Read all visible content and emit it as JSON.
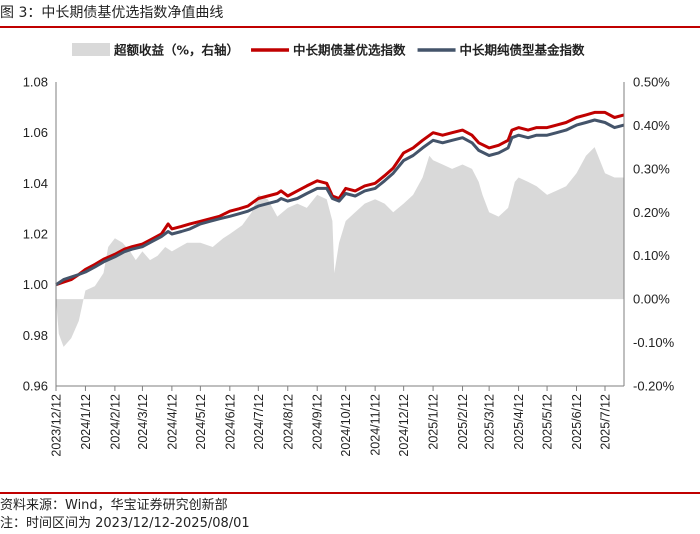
{
  "figure": {
    "title": "图 3：中长期债基优选指数净值曲线",
    "source": "资料来源：Wind，华宝证券研究创新部",
    "note": "注：时间区间为 2023/12/12-2025/08/01"
  },
  "colors": {
    "accent_rule": "#c00000",
    "series_red": "#c00000",
    "series_blue": "#44546a",
    "area_grey": "#d9d9d9"
  },
  "chart_data": {
    "type": "line",
    "title": "",
    "legend_placement": "top",
    "grid": false,
    "x_tick_labels": [
      "2023/12/12",
      "2024/1/12",
      "2024/2/12",
      "2024/3/12",
      "2024/4/12",
      "2024/5/12",
      "2024/6/12",
      "2024/7/12",
      "2024/8/12",
      "2024/9/12",
      "2024/10/12",
      "2024/11/12",
      "2024/12/12",
      "2025/1/12",
      "2025/2/12",
      "2025/3/12",
      "2025/4/12",
      "2025/5/12",
      "2025/6/12",
      "2025/7/12"
    ],
    "y_left": {
      "ylim": [
        0.96,
        1.08
      ],
      "ticks": [
        "0.96",
        "0.98",
        "1.00",
        "1.02",
        "1.04",
        "1.06",
        "1.08"
      ]
    },
    "y_right": {
      "ylim": [
        -0.002,
        0.005
      ],
      "ticks": [
        "-0.20%",
        "-0.10%",
        "0.00%",
        "0.10%",
        "0.20%",
        "0.30%",
        "0.40%",
        "0.50%"
      ]
    },
    "series": [
      {
        "name": "超额收益（%，右轴）",
        "kind": "area",
        "axis": "right",
        "points": [
          [
            "2023/12/12",
            0.0
          ],
          [
            "2023/12/15",
            -0.0008
          ],
          [
            "2023/12/20",
            -0.0011
          ],
          [
            "2023/12/28",
            -0.0009
          ],
          [
            "2024/1/5",
            -0.0005
          ],
          [
            "2024/1/12",
            0.0002
          ],
          [
            "2024/1/22",
            0.0003
          ],
          [
            "2024/1/31",
            0.0006
          ],
          [
            "2024/2/5",
            0.0012
          ],
          [
            "2024/2/12",
            0.0014
          ],
          [
            "2024/2/20",
            0.0013
          ],
          [
            "2024/2/28",
            0.0011
          ],
          [
            "2024/3/5",
            0.0009
          ],
          [
            "2024/3/12",
            0.0011
          ],
          [
            "2024/3/20",
            0.0009
          ],
          [
            "2024/3/28",
            0.001
          ],
          [
            "2024/4/5",
            0.0012
          ],
          [
            "2024/4/12",
            0.0011
          ],
          [
            "2024/4/20",
            0.0012
          ],
          [
            "2024/4/28",
            0.0013
          ],
          [
            "2024/5/12",
            0.0013
          ],
          [
            "2024/5/25",
            0.0012
          ],
          [
            "2024/6/5",
            0.0014
          ],
          [
            "2024/6/12",
            0.0015
          ],
          [
            "2024/6/25",
            0.0017
          ],
          [
            "2024/7/5",
            0.002
          ],
          [
            "2024/7/12",
            0.0024
          ],
          [
            "2024/7/22",
            0.0023
          ],
          [
            "2024/8/1",
            0.0019
          ],
          [
            "2024/8/12",
            0.0021
          ],
          [
            "2024/8/22",
            0.0022
          ],
          [
            "2024/9/1",
            0.0021
          ],
          [
            "2024/9/12",
            0.0024
          ],
          [
            "2024/9/22",
            0.0023
          ],
          [
            "2024/9/28",
            0.0018
          ],
          [
            "2024/9/30",
            0.0006
          ],
          [
            "2024/10/5",
            0.0013
          ],
          [
            "2024/10/12",
            0.0018
          ],
          [
            "2024/10/22",
            0.002
          ],
          [
            "2024/11/1",
            0.0022
          ],
          [
            "2024/11/12",
            0.0023
          ],
          [
            "2024/11/22",
            0.0022
          ],
          [
            "2024/12/1",
            0.002
          ],
          [
            "2024/12/12",
            0.0022
          ],
          [
            "2024/12/22",
            0.0024
          ],
          [
            "2025/1/1",
            0.0028
          ],
          [
            "2025/1/8",
            0.0033
          ],
          [
            "2025/1/12",
            0.0032
          ],
          [
            "2025/1/22",
            0.0031
          ],
          [
            "2025/2/1",
            0.003
          ],
          [
            "2025/2/12",
            0.0031
          ],
          [
            "2025/2/22",
            0.003
          ],
          [
            "2025/3/1",
            0.0027
          ],
          [
            "2025/3/5",
            0.0024
          ],
          [
            "2025/3/12",
            0.002
          ],
          [
            "2025/3/22",
            0.0019
          ],
          [
            "2025/4/1",
            0.0021
          ],
          [
            "2025/4/8",
            0.0027
          ],
          [
            "2025/4/12",
            0.0028
          ],
          [
            "2025/4/22",
            0.0027
          ],
          [
            "2025/5/1",
            0.0026
          ],
          [
            "2025/5/12",
            0.0024
          ],
          [
            "2025/5/22",
            0.0025
          ],
          [
            "2025/6/1",
            0.0026
          ],
          [
            "2025/6/12",
            0.0029
          ],
          [
            "2025/6/22",
            0.0033
          ],
          [
            "2025/7/1",
            0.0035
          ],
          [
            "2025/7/12",
            0.0029
          ],
          [
            "2025/7/22",
            0.0028
          ],
          [
            "2025/8/1",
            0.0028
          ]
        ]
      },
      {
        "name": "中长期债基优选指数",
        "kind": "line",
        "axis": "left",
        "points": [
          [
            "2023/12/12",
            1.0
          ],
          [
            "2023/12/20",
            1.001
          ],
          [
            "2023/12/28",
            1.002
          ],
          [
            "2024/1/5",
            1.004
          ],
          [
            "2024/1/12",
            1.006
          ],
          [
            "2024/1/22",
            1.008
          ],
          [
            "2024/1/31",
            1.01
          ],
          [
            "2024/2/12",
            1.012
          ],
          [
            "2024/2/22",
            1.014
          ],
          [
            "2024/3/1",
            1.015
          ],
          [
            "2024/3/12",
            1.016
          ],
          [
            "2024/3/22",
            1.018
          ],
          [
            "2024/4/1",
            1.02
          ],
          [
            "2024/4/8",
            1.024
          ],
          [
            "2024/4/12",
            1.022
          ],
          [
            "2024/4/22",
            1.023
          ],
          [
            "2024/5/1",
            1.024
          ],
          [
            "2024/5/12",
            1.025
          ],
          [
            "2024/5/22",
            1.026
          ],
          [
            "2024/6/1",
            1.027
          ],
          [
            "2024/6/12",
            1.029
          ],
          [
            "2024/6/22",
            1.03
          ],
          [
            "2024/7/1",
            1.031
          ],
          [
            "2024/7/12",
            1.034
          ],
          [
            "2024/7/22",
            1.035
          ],
          [
            "2024/8/1",
            1.036
          ],
          [
            "2024/8/5",
            1.037
          ],
          [
            "2024/8/12",
            1.035
          ],
          [
            "2024/8/22",
            1.037
          ],
          [
            "2024/9/1",
            1.039
          ],
          [
            "2024/9/12",
            1.041
          ],
          [
            "2024/9/22",
            1.04
          ],
          [
            "2024/9/28",
            1.035
          ],
          [
            "2024/10/5",
            1.034
          ],
          [
            "2024/10/12",
            1.038
          ],
          [
            "2024/10/22",
            1.037
          ],
          [
            "2024/11/1",
            1.039
          ],
          [
            "2024/11/12",
            1.04
          ],
          [
            "2024/11/22",
            1.043
          ],
          [
            "2024/12/1",
            1.046
          ],
          [
            "2024/12/12",
            1.052
          ],
          [
            "2024/12/22",
            1.054
          ],
          [
            "2025/1/1",
            1.057
          ],
          [
            "2025/1/12",
            1.06
          ],
          [
            "2025/1/22",
            1.059
          ],
          [
            "2025/2/1",
            1.06
          ],
          [
            "2025/2/12",
            1.061
          ],
          [
            "2025/2/22",
            1.059
          ],
          [
            "2025/3/1",
            1.056
          ],
          [
            "2025/3/12",
            1.054
          ],
          [
            "2025/3/22",
            1.055
          ],
          [
            "2025/4/1",
            1.057
          ],
          [
            "2025/4/5",
            1.061
          ],
          [
            "2025/4/12",
            1.062
          ],
          [
            "2025/4/22",
            1.061
          ],
          [
            "2025/5/1",
            1.062
          ],
          [
            "2025/5/12",
            1.062
          ],
          [
            "2025/5/22",
            1.063
          ],
          [
            "2025/6/1",
            1.064
          ],
          [
            "2025/6/12",
            1.066
          ],
          [
            "2025/6/22",
            1.067
          ],
          [
            "2025/7/1",
            1.068
          ],
          [
            "2025/7/12",
            1.068
          ],
          [
            "2025/7/22",
            1.066
          ],
          [
            "2025/8/1",
            1.067
          ]
        ]
      },
      {
        "name": "中长期纯债型基金指数",
        "kind": "line",
        "axis": "left",
        "points": [
          [
            "2023/12/12",
            1.0
          ],
          [
            "2023/12/20",
            1.002
          ],
          [
            "2023/12/28",
            1.003
          ],
          [
            "2024/1/5",
            1.004
          ],
          [
            "2024/1/12",
            1.005
          ],
          [
            "2024/1/22",
            1.007
          ],
          [
            "2024/1/31",
            1.009
          ],
          [
            "2024/2/12",
            1.011
          ],
          [
            "2024/2/22",
            1.013
          ],
          [
            "2024/3/1",
            1.014
          ],
          [
            "2024/3/12",
            1.015
          ],
          [
            "2024/3/22",
            1.017
          ],
          [
            "2024/4/1",
            1.019
          ],
          [
            "2024/4/8",
            1.021
          ],
          [
            "2024/4/12",
            1.02
          ],
          [
            "2024/4/22",
            1.021
          ],
          [
            "2024/5/1",
            1.022
          ],
          [
            "2024/5/12",
            1.024
          ],
          [
            "2024/5/22",
            1.025
          ],
          [
            "2024/6/1",
            1.026
          ],
          [
            "2024/6/12",
            1.027
          ],
          [
            "2024/6/22",
            1.028
          ],
          [
            "2024/7/1",
            1.029
          ],
          [
            "2024/7/12",
            1.031
          ],
          [
            "2024/7/22",
            1.032
          ],
          [
            "2024/8/1",
            1.033
          ],
          [
            "2024/8/5",
            1.034
          ],
          [
            "2024/8/12",
            1.033
          ],
          [
            "2024/8/22",
            1.034
          ],
          [
            "2024/9/1",
            1.036
          ],
          [
            "2024/9/12",
            1.038
          ],
          [
            "2024/9/22",
            1.038
          ],
          [
            "2024/9/28",
            1.034
          ],
          [
            "2024/10/5",
            1.033
          ],
          [
            "2024/10/12",
            1.036
          ],
          [
            "2024/10/22",
            1.035
          ],
          [
            "2024/11/1",
            1.037
          ],
          [
            "2024/11/12",
            1.038
          ],
          [
            "2024/11/22",
            1.041
          ],
          [
            "2024/12/1",
            1.044
          ],
          [
            "2024/12/12",
            1.049
          ],
          [
            "2024/12/22",
            1.051
          ],
          [
            "2025/1/1",
            1.054
          ],
          [
            "2025/1/12",
            1.057
          ],
          [
            "2025/1/22",
            1.056
          ],
          [
            "2025/2/1",
            1.057
          ],
          [
            "2025/2/12",
            1.058
          ],
          [
            "2025/2/22",
            1.056
          ],
          [
            "2025/3/1",
            1.053
          ],
          [
            "2025/3/12",
            1.051
          ],
          [
            "2025/3/22",
            1.052
          ],
          [
            "2025/4/1",
            1.054
          ],
          [
            "2025/4/5",
            1.058
          ],
          [
            "2025/4/12",
            1.059
          ],
          [
            "2025/4/22",
            1.058
          ],
          [
            "2025/5/1",
            1.059
          ],
          [
            "2025/5/12",
            1.059
          ],
          [
            "2025/5/22",
            1.06
          ],
          [
            "2025/6/1",
            1.061
          ],
          [
            "2025/6/12",
            1.063
          ],
          [
            "2025/6/22",
            1.064
          ],
          [
            "2025/7/1",
            1.065
          ],
          [
            "2025/7/12",
            1.064
          ],
          [
            "2025/7/22",
            1.062
          ],
          [
            "2025/8/1",
            1.063
          ]
        ]
      }
    ]
  }
}
